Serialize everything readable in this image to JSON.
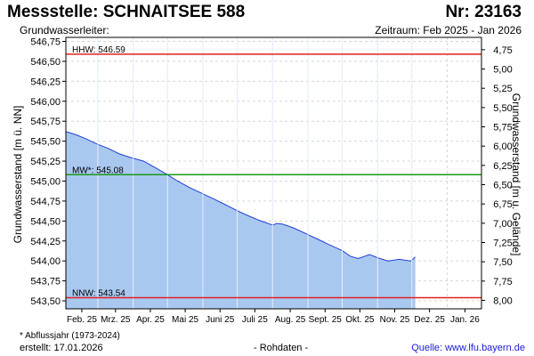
{
  "header": {
    "title_left": "Messstelle: SCHNAITSEE 588",
    "title_right": "Nr: 23163",
    "subtitle_left": "Grundwasserleiter:",
    "subtitle_right": "Zeitraum: Feb 2025 - Jan 2026"
  },
  "footer": {
    "footnote": "* Abflussjahr (1973-2024)",
    "created": "erstellt:  17.01.2026",
    "center": "- Rohdaten -",
    "source": "Quelle: www.lfu.bayern.de"
  },
  "colors": {
    "area_fill": "#a9c8f0",
    "series_line": "#1f3fd6",
    "hhw_line": "#e02020",
    "nnw_line": "#e02020",
    "mw_line": "#1a9a1a",
    "grid": "#d8d8d8"
  },
  "chart_data": {
    "type": "area",
    "ylabel_left": "Grundwasserstand [m ü. NN]",
    "ylabel_right": "Grundwasserstand [m u. Gelände]",
    "ylim": [
      543.4,
      546.8
    ],
    "ylim_right": [
      4.59,
      8.11
    ],
    "yticks_left": [
      "546,75",
      "546,50",
      "546,25",
      "546,00",
      "545,75",
      "545,50",
      "545,25",
      "545,00",
      "544,75",
      "544,50",
      "544,25",
      "544,00",
      "543,75",
      "543,50"
    ],
    "yticks_right": [
      "4,75",
      "5,00",
      "5,25",
      "5,50",
      "5,75",
      "6,00",
      "6,25",
      "6,50",
      "6,75",
      "7,00",
      "7,25",
      "7,50",
      "7,75",
      "8,00"
    ],
    "xticks": [
      "Feb. 25",
      "Mrz. 25",
      "Apr. 25",
      "Mai 25",
      "Juni 25",
      "Juli 25",
      "Aug. 25",
      "Sept. 25",
      "Okt. 25",
      "Nov. 25",
      "Dez. 25",
      "Jan. 26"
    ],
    "x_start": "2025-02-01",
    "x_end": "2026-01-31",
    "grid": true,
    "reference_lines": [
      {
        "name": "HHW",
        "label": "HHW: 546.59",
        "value": 546.59
      },
      {
        "name": "MW*",
        "label": "MW*: 545.08",
        "value": 545.08
      },
      {
        "name": "NNW",
        "label": "NNW: 543.54",
        "value": 543.54
      }
    ],
    "series": [
      {
        "x": [
          "2025-02-01",
          "2025-02-10",
          "2025-02-20",
          "2025-03-01",
          "2025-03-10",
          "2025-03-20",
          "2025-03-31",
          "2025-04-10",
          "2025-04-20",
          "2025-05-01",
          "2025-05-10",
          "2025-05-20",
          "2025-06-01",
          "2025-06-10",
          "2025-06-20",
          "2025-07-01",
          "2025-07-10",
          "2025-07-20",
          "2025-08-01",
          "2025-08-05",
          "2025-08-10",
          "2025-08-20",
          "2025-09-01",
          "2025-09-10",
          "2025-09-20",
          "2025-10-01",
          "2025-10-08",
          "2025-10-15",
          "2025-10-25",
          "2025-11-01",
          "2025-11-10",
          "2025-11-20",
          "2025-11-30",
          "2025-12-04"
        ],
        "values": [
          545.62,
          545.58,
          545.52,
          545.46,
          545.41,
          545.34,
          545.29,
          545.25,
          545.17,
          545.08,
          545.0,
          544.92,
          544.84,
          544.78,
          544.71,
          544.63,
          544.57,
          544.51,
          544.45,
          544.47,
          544.46,
          544.41,
          544.33,
          544.27,
          544.2,
          544.13,
          544.06,
          544.03,
          544.08,
          544.04,
          544.0,
          544.02,
          544.0,
          544.05
        ]
      }
    ]
  }
}
